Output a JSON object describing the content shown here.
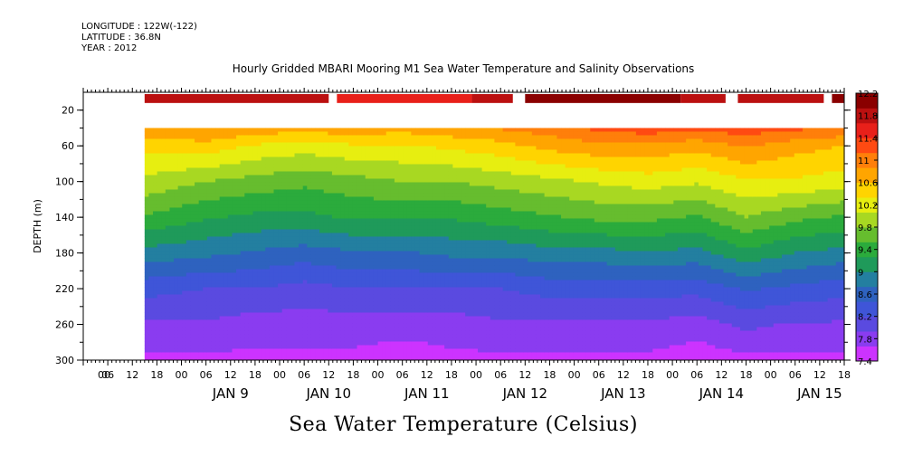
{
  "header": {
    "longitude": "LONGITUDE : 122W(-122)",
    "latitude": "LATITUDE : 36.8N",
    "year": "YEAR : 2012",
    "title": "Hourly Gridded MBARI Mooring M1 Sea Water Temperature and Salinity Observations"
  },
  "chart_data": {
    "type": "heatmap",
    "title": "Hourly Gridded MBARI Mooring M1 Sea Water Temperature and Salinity Observations",
    "colorbar_title": "Sea Water Temperature (Celsius)",
    "ylabel": "DEPTH (m)",
    "y_reversed": true,
    "ylim": [
      300,
      0
    ],
    "y_ticks": [
      20,
      60,
      100,
      140,
      180,
      220,
      260,
      300
    ],
    "x_start": "2012-01-08 00:00",
    "x_end": "2012-01-15 18:00",
    "x_tick_hours": [
      "00",
      "06",
      "12",
      "18",
      "00",
      "06",
      "12",
      "18",
      "00",
      "06",
      "12",
      "18",
      "00",
      "06",
      "12",
      "18",
      "00",
      "06",
      "12",
      "18",
      "00",
      "06",
      "12",
      "18",
      "00",
      "06",
      "12",
      "18",
      "00",
      "06",
      "12",
      "18"
    ],
    "x_day_labels": [
      "JAN  9",
      "JAN 10",
      "JAN 11",
      "JAN 12",
      "JAN 13",
      "JAN 14",
      "JAN 15"
    ],
    "colorbar_levels": [
      7.4,
      7.8,
      8.2,
      8.6,
      9,
      9.4,
      9.8,
      10.2,
      10.6,
      11,
      11.4,
      11.8,
      12.2
    ],
    "colorbar_colors": [
      "#cc33ff",
      "#8a3cf0",
      "#5a4ae0",
      "#3f55d8",
      "#2e62bf",
      "#237fa0",
      "#1f9a5a",
      "#2bab3c",
      "#66bd2e",
      "#a8d822",
      "#e7ee10",
      "#ffd400",
      "#ffa500",
      "#ff7f0a",
      "#ff4a12",
      "#e8201a",
      "#bb1010",
      "#8a0000"
    ],
    "data_start": "2012-01-08 15:00",
    "surface_depth_range": [
      2,
      12
    ],
    "surface_segments": [
      {
        "start": "2012-01-08 15:00",
        "end": "2012-01-10 12:00",
        "value": 11.8
      },
      {
        "start": "2012-01-10 14:00",
        "end": "2012-01-11 23:00",
        "value": 11.6
      },
      {
        "start": "2012-01-11 23:00",
        "end": "2012-01-12 09:00",
        "value": 11.9
      },
      {
        "start": "2012-01-12 12:00",
        "end": "2012-01-14 02:00",
        "value": 12.2
      },
      {
        "start": "2012-01-14 02:00",
        "end": "2012-01-14 13:00",
        "value": 11.8
      },
      {
        "start": "2012-01-14 16:00",
        "end": "2012-01-15 13:00",
        "value": 11.9
      },
      {
        "start": "2012-01-15 15:00",
        "end": "2012-01-15 18:00",
        "value": 12.0
      }
    ],
    "upper_depth": 40,
    "profile_times": [
      "2012-01-08 15:00",
      "2012-01-09 06:00",
      "2012-01-09 18:00",
      "2012-01-10 06:00",
      "2012-01-10 18:00",
      "2012-01-11 06:00",
      "2012-01-11 18:00",
      "2012-01-12 06:00",
      "2012-01-12 18:00",
      "2012-01-13 06:00",
      "2012-01-13 18:00",
      "2012-01-14 06:00",
      "2012-01-14 18:00",
      "2012-01-15 06:00",
      "2012-01-15 18:00"
    ],
    "profile_depths": [
      40,
      60,
      100,
      140,
      180,
      220,
      260,
      300
    ],
    "profile_values": [
      [
        10.8,
        10.4,
        10.0,
        9.5,
        8.9,
        8.3,
        7.9,
        7.6
      ],
      [
        10.9,
        10.5,
        9.8,
        9.3,
        8.8,
        8.2,
        7.9,
        7.6
      ],
      [
        10.8,
        10.3,
        9.7,
        9.2,
        8.7,
        8.2,
        7.8,
        7.6
      ],
      [
        10.7,
        10.2,
        9.6,
        9.2,
        8.6,
        8.1,
        7.8,
        7.6
      ],
      [
        10.8,
        10.3,
        9.7,
        9.3,
        8.7,
        8.2,
        7.8,
        7.6
      ],
      [
        10.7,
        10.3,
        9.8,
        9.3,
        8.7,
        8.2,
        7.8,
        7.5
      ],
      [
        10.8,
        10.4,
        9.8,
        9.3,
        8.8,
        8.2,
        7.8,
        7.6
      ],
      [
        10.9,
        10.5,
        9.9,
        9.4,
        8.8,
        8.2,
        7.9,
        7.6
      ],
      [
        11.0,
        10.7,
        10.0,
        9.5,
        8.9,
        8.3,
        7.9,
        7.6
      ],
      [
        11.2,
        10.8,
        10.1,
        9.6,
        8.9,
        8.3,
        7.9,
        7.6
      ],
      [
        11.3,
        10.8,
        10.2,
        9.6,
        9.0,
        8.3,
        7.9,
        7.6
      ],
      [
        11.2,
        10.7,
        10.1,
        9.5,
        8.9,
        8.3,
        7.8,
        7.5
      ],
      [
        11.3,
        10.9,
        10.3,
        9.8,
        9.2,
        8.5,
        8.0,
        7.6
      ],
      [
        11.2,
        10.7,
        10.3,
        9.6,
        9.0,
        8.4,
        7.9,
        7.6
      ],
      [
        11.1,
        10.6,
        10.2,
        9.5,
        8.9,
        8.3,
        7.9,
        7.6
      ]
    ]
  }
}
